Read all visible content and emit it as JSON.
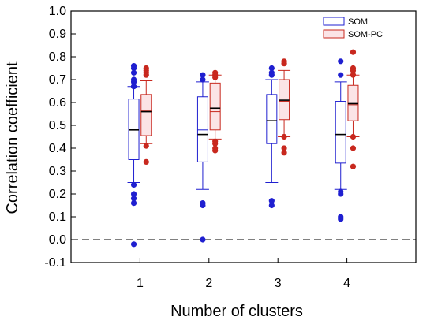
{
  "chart_data": {
    "type": "box",
    "xlabel": "Number of clusters",
    "ylabel": "Correlation coefficient",
    "ylim": [
      -0.1,
      1.0
    ],
    "xlim": [
      0,
      5
    ],
    "yticks": [
      -0.1,
      0.0,
      0.1,
      0.2,
      0.3,
      0.4,
      0.5,
      0.6,
      0.7,
      0.8,
      0.9,
      1.0
    ],
    "ytick_labels": [
      "-0.1",
      "0.0",
      "0.1",
      "0.2",
      "0.3",
      "0.4",
      "0.5",
      "0.6",
      "0.7",
      "0.8",
      "0.9",
      "1.0"
    ],
    "categories": [
      "1",
      "2",
      "3",
      "4"
    ],
    "reference_line": {
      "y": 0.0,
      "style": "dashed"
    },
    "legend": {
      "position": "top-right"
    },
    "series": [
      {
        "name": "SOM",
        "color": "#1f1fd0",
        "fill": "#ffffff",
        "boxes": [
          {
            "category": "1",
            "q1": 0.35,
            "median": 0.48,
            "mean": 0.48,
            "q3": 0.615,
            "whisker_low": 0.25,
            "whisker_high": 0.67,
            "outliers": [
              0.76,
              0.75,
              0.73,
              0.7,
              0.69,
              0.67,
              0.24,
              0.2,
              0.18,
              0.16,
              -0.02
            ]
          },
          {
            "category": "2",
            "q1": 0.34,
            "median": 0.46,
            "mean": 0.48,
            "q3": 0.625,
            "whisker_low": 0.22,
            "whisker_high": 0.69,
            "outliers": [
              0.72,
              0.7,
              0.16,
              0.15,
              0.0
            ]
          },
          {
            "category": "3",
            "q1": 0.42,
            "median": 0.52,
            "mean": 0.55,
            "q3": 0.635,
            "whisker_low": 0.25,
            "whisker_high": 0.7,
            "outliers": [
              0.75,
              0.73,
              0.72,
              0.17,
              0.15
            ]
          },
          {
            "category": "4",
            "q1": 0.335,
            "median": 0.46,
            "mean": 0.46,
            "q3": 0.605,
            "whisker_low": 0.22,
            "whisker_high": 0.69,
            "outliers": [
              0.78,
              0.72,
              0.21,
              0.2,
              0.1,
              0.09
            ]
          }
        ]
      },
      {
        "name": "SOM-PC",
        "color": "#c8281e",
        "fill": "#fbe4e6",
        "boxes": [
          {
            "category": "1",
            "q1": 0.455,
            "median": 0.56,
            "mean": 0.565,
            "q3": 0.635,
            "whisker_low": 0.42,
            "whisker_high": 0.695,
            "outliers": [
              0.75,
              0.74,
              0.73,
              0.72,
              0.41,
              0.34
            ]
          },
          {
            "category": "2",
            "q1": 0.48,
            "median": 0.575,
            "mean": 0.56,
            "q3": 0.685,
            "whisker_low": 0.44,
            "whisker_high": 0.72,
            "outliers": [
              0.73,
              0.72,
              0.71,
              0.43,
              0.42,
              0.4,
              0.39
            ]
          },
          {
            "category": "3",
            "q1": 0.525,
            "median": 0.61,
            "mean": 0.605,
            "q3": 0.7,
            "whisker_low": 0.45,
            "whisker_high": 0.74,
            "outliers": [
              0.78,
              0.77,
              0.45,
              0.4,
              0.38
            ]
          },
          {
            "category": "4",
            "q1": 0.52,
            "median": 0.595,
            "mean": 0.59,
            "q3": 0.675,
            "whisker_low": 0.45,
            "whisker_high": 0.72,
            "outliers": [
              0.82,
              0.75,
              0.74,
              0.72,
              0.45,
              0.4,
              0.32
            ]
          }
        ]
      }
    ]
  }
}
